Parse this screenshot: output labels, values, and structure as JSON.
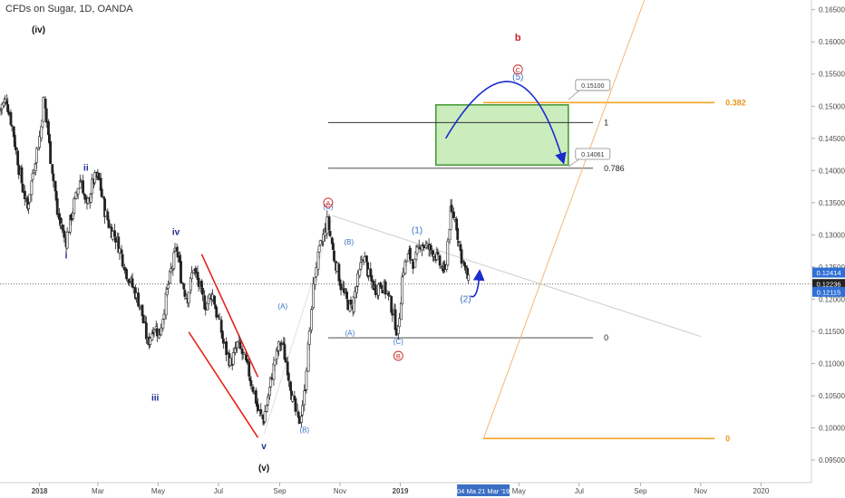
{
  "header": {
    "title": "CFDs on Sugar, 1D, OANDA"
  },
  "chart_data": {
    "type": "candlestick",
    "symbol": "CFDs on Sugar",
    "interval": "1D",
    "source": "OANDA",
    "x_axis": {
      "labels": [
        {
          "text": "2018",
          "x": "2018-01-01",
          "bold": true
        },
        {
          "text": "Mar",
          "x": "2018-03-01",
          "bold": false
        },
        {
          "text": "May",
          "x": "2018-05-01",
          "bold": false
        },
        {
          "text": "Jul",
          "x": "2018-07-01",
          "bold": false
        },
        {
          "text": "Sep",
          "x": "2018-09-01",
          "bold": false
        },
        {
          "text": "Nov",
          "x": "2018-11-01",
          "bold": false
        },
        {
          "text": "2019",
          "x": "2019-01-01",
          "bold": true
        },
        {
          "text": "May",
          "x": "2019-05-01",
          "bold": false
        },
        {
          "text": "Jul",
          "x": "2019-07-01",
          "bold": false
        },
        {
          "text": "Sep",
          "x": "2019-09-01",
          "bold": false
        },
        {
          "text": "Nov",
          "x": "2019-11-01",
          "bold": false
        },
        {
          "text": "2020",
          "x": "2020-01-01",
          "bold": false
        }
      ],
      "range": [
        "2017-11-22",
        "2020-02-21"
      ],
      "date_badge": "04 Ma    21 Mar '19"
    },
    "y_axis": {
      "range": [
        0.0915,
        0.1665
      ],
      "ticks": [
        "0.16500",
        "0.16000",
        "0.15500",
        "0.15000",
        "0.14500",
        "0.14000",
        "0.13500",
        "0.13000",
        "0.12500",
        "0.12000",
        "0.11500",
        "0.11000",
        "0.10500",
        "0.10000",
        "0.09500"
      ],
      "price_tags": [
        {
          "value": 0.12414,
          "text": "0.12414",
          "color": "#2f6fd6"
        },
        {
          "value": 0.12236,
          "text": "0.12236",
          "color": "#222222"
        },
        {
          "value": 0.12115,
          "text": "0.12115",
          "color": "#2f6fd6"
        }
      ]
    },
    "price_path": [
      [
        "2017-11-22",
        0.1495
      ],
      [
        "2017-11-29",
        0.151
      ],
      [
        "2017-12-05",
        0.1465
      ],
      [
        "2017-12-12",
        0.14
      ],
      [
        "2017-12-20",
        0.134
      ],
      [
        "2017-12-27",
        0.141
      ],
      [
        "2018-01-02",
        0.1455
      ],
      [
        "2018-01-06",
        0.151
      ],
      [
        "2018-01-12",
        0.143
      ],
      [
        "2018-01-20",
        0.133
      ],
      [
        "2018-01-28",
        0.129
      ],
      [
        "2018-02-05",
        0.1345
      ],
      [
        "2018-02-12",
        0.139
      ],
      [
        "2018-02-18",
        0.134
      ],
      [
        "2018-02-25",
        0.1385
      ],
      [
        "2018-03-02",
        0.139
      ],
      [
        "2018-03-08",
        0.134
      ],
      [
        "2018-03-14",
        0.131
      ],
      [
        "2018-03-20",
        0.1295
      ],
      [
        "2018-03-26",
        0.1265
      ],
      [
        "2018-04-01",
        0.1235
      ],
      [
        "2018-04-07",
        0.1215
      ],
      [
        "2018-04-14",
        0.1185
      ],
      [
        "2018-04-21",
        0.113
      ],
      [
        "2018-04-27",
        0.116
      ],
      [
        "2018-05-03",
        0.1145
      ],
      [
        "2018-05-09",
        0.12
      ],
      [
        "2018-05-14",
        0.124
      ],
      [
        "2018-05-20",
        0.128
      ],
      [
        "2018-05-25",
        0.123
      ],
      [
        "2018-05-31",
        0.12
      ],
      [
        "2018-06-06",
        0.125
      ],
      [
        "2018-06-12",
        0.122
      ],
      [
        "2018-06-18",
        0.119
      ],
      [
        "2018-06-25",
        0.121
      ],
      [
        "2018-07-01",
        0.117
      ],
      [
        "2018-07-07",
        0.113
      ],
      [
        "2018-07-14",
        0.11
      ],
      [
        "2018-07-21",
        0.113
      ],
      [
        "2018-07-28",
        0.1105
      ],
      [
        "2018-08-04",
        0.107
      ],
      [
        "2018-08-10",
        0.103
      ],
      [
        "2018-08-16",
        0.101
      ],
      [
        "2018-08-22",
        0.106
      ],
      [
        "2018-08-28",
        0.111
      ],
      [
        "2018-09-03",
        0.1135
      ],
      [
        "2018-09-09",
        0.1095
      ],
      [
        "2018-09-15",
        0.104
      ],
      [
        "2018-09-21",
        0.1005
      ],
      [
        "2018-09-27",
        0.106
      ],
      [
        "2018-10-02",
        0.116
      ],
      [
        "2018-10-08",
        0.125
      ],
      [
        "2018-10-14",
        0.129
      ],
      [
        "2018-10-20",
        0.132
      ],
      [
        "2018-10-26",
        0.127
      ],
      [
        "2018-11-01",
        0.123
      ],
      [
        "2018-11-07",
        0.12
      ],
      [
        "2018-11-13",
        0.1185
      ],
      [
        "2018-11-19",
        0.1225
      ],
      [
        "2018-11-25",
        0.127
      ],
      [
        "2018-12-01",
        0.1235
      ],
      [
        "2018-12-07",
        0.1215
      ],
      [
        "2018-12-13",
        0.1225
      ],
      [
        "2018-12-19",
        0.121
      ],
      [
        "2018-12-25",
        0.118
      ],
      [
        "2018-12-30",
        0.1145
      ],
      [
        "2019-01-04",
        0.1245
      ],
      [
        "2019-01-10",
        0.127
      ],
      [
        "2019-01-16",
        0.1255
      ],
      [
        "2019-01-22",
        0.129
      ],
      [
        "2019-01-28",
        0.128
      ],
      [
        "2019-02-04",
        0.1275
      ],
      [
        "2019-02-10",
        0.1255
      ],
      [
        "2019-02-16",
        0.124
      ],
      [
        "2019-02-21",
        0.1335
      ],
      [
        "2019-02-26",
        0.1325
      ],
      [
        "2019-03-03",
        0.1275
      ],
      [
        "2019-03-08",
        0.1245
      ],
      [
        "2019-03-12",
        0.1225
      ]
    ],
    "wave_labels": [
      {
        "text": "(iv)",
        "x": "2017-12-31",
        "y": 0.1614,
        "color": "#111111",
        "bold": true,
        "size": 10
      },
      {
        "text": "ii",
        "x": "2018-02-17",
        "y": 0.14,
        "color": "#1a2c8a",
        "bold": true,
        "size": 10
      },
      {
        "text": "i",
        "x": "2018-01-28",
        "y": 0.1263,
        "color": "#1a2c8a",
        "bold": true,
        "size": 10
      },
      {
        "text": "iv",
        "x": "2018-05-19",
        "y": 0.13,
        "color": "#1a2c8a",
        "bold": true,
        "size": 10
      },
      {
        "text": "iii",
        "x": "2018-04-28",
        "y": 0.1042,
        "color": "#1a2c8a",
        "bold": true,
        "size": 10
      },
      {
        "text": "v",
        "x": "2018-08-16",
        "y": 0.0967,
        "color": "#1a2c8a",
        "bold": true,
        "size": 10
      },
      {
        "text": "(v)",
        "x": "2018-08-16",
        "y": 0.0933,
        "color": "#111111",
        "bold": true,
        "size": 10
      },
      {
        "text": "(A)",
        "x": "2018-09-04",
        "y": 0.1185,
        "color": "#3a6fc4",
        "bold": false,
        "size": 8
      },
      {
        "text": "(B)",
        "x": "2018-09-26",
        "y": 0.0993,
        "color": "#3a6fc4",
        "bold": false,
        "size": 8
      },
      {
        "text": "(C)",
        "x": "2018-10-20",
        "y": 0.134,
        "color": "#3a6fc4",
        "bold": false,
        "size": 8
      },
      {
        "text": "(B)",
        "x": "2018-11-10",
        "y": 0.1285,
        "color": "#3a6fc4",
        "bold": false,
        "size": 8
      },
      {
        "text": "(A)",
        "x": "2018-11-11",
        "y": 0.1144,
        "color": "#3a6fc4",
        "bold": false,
        "size": 8
      },
      {
        "text": "(C)",
        "x": "2018-12-30",
        "y": 0.113,
        "color": "#3a6fc4",
        "bold": false,
        "size": 8
      },
      {
        "text": "(1)",
        "x": "2019-01-18",
        "y": 0.1303,
        "color": "#3a6fc4",
        "bold": false,
        "size": 10
      },
      {
        "text": "(2)",
        "x": "2019-03-08",
        "y": 0.1196,
        "color": "#3a6fc4",
        "bold": false,
        "size": 10
      },
      {
        "text": "(5)",
        "x": "2019-04-30",
        "y": 0.1541,
        "color": "#3a6fc4",
        "bold": false,
        "size": 10
      },
      {
        "text": "b",
        "x": "2019-04-30",
        "y": 0.1602,
        "color": "#cc2222",
        "bold": true,
        "size": 11
      }
    ],
    "circle_labels": [
      {
        "text": "A",
        "x": "2018-10-20",
        "y": 0.135,
        "color": "#cc2222"
      },
      {
        "text": "B",
        "x": "2018-12-30",
        "y": 0.1112,
        "color": "#cc2222"
      },
      {
        "text": "C",
        "x": "2019-04-30",
        "y": 0.1557,
        "color": "#cc2222"
      }
    ],
    "levels": [
      {
        "label": "1",
        "value": 0.14745,
        "x_start": "2018-10-20",
        "x_end": "2019-07-15",
        "color": "#333333"
      },
      {
        "label": "0.786",
        "value": 0.14035,
        "x_start": "2018-10-20",
        "x_end": "2019-07-15",
        "color": "#333333"
      },
      {
        "label": "0",
        "value": 0.114,
        "x_start": "2018-10-20",
        "x_end": "2019-07-15",
        "color": "#333333"
      },
      {
        "label": "0.382",
        "value": 0.15055,
        "x_start": "2019-03-26",
        "x_end": "2019-11-15",
        "color": "#f4a623"
      },
      {
        "label": "0",
        "value": 0.09835,
        "x_start": "2019-03-26",
        "x_end": "2019-11-15",
        "color": "#f4a623"
      }
    ],
    "callouts": [
      {
        "text": "0.15100",
        "x": "2019-06-20",
        "y": 0.153
      },
      {
        "text": "0.14061",
        "x": "2019-06-20",
        "y": 0.1423
      }
    ],
    "current_price": 0.12236,
    "target_zone": {
      "x_start": "2019-02-06",
      "x_end": "2019-06-20",
      "y_low": 0.14085,
      "y_high": 0.1502
    }
  }
}
